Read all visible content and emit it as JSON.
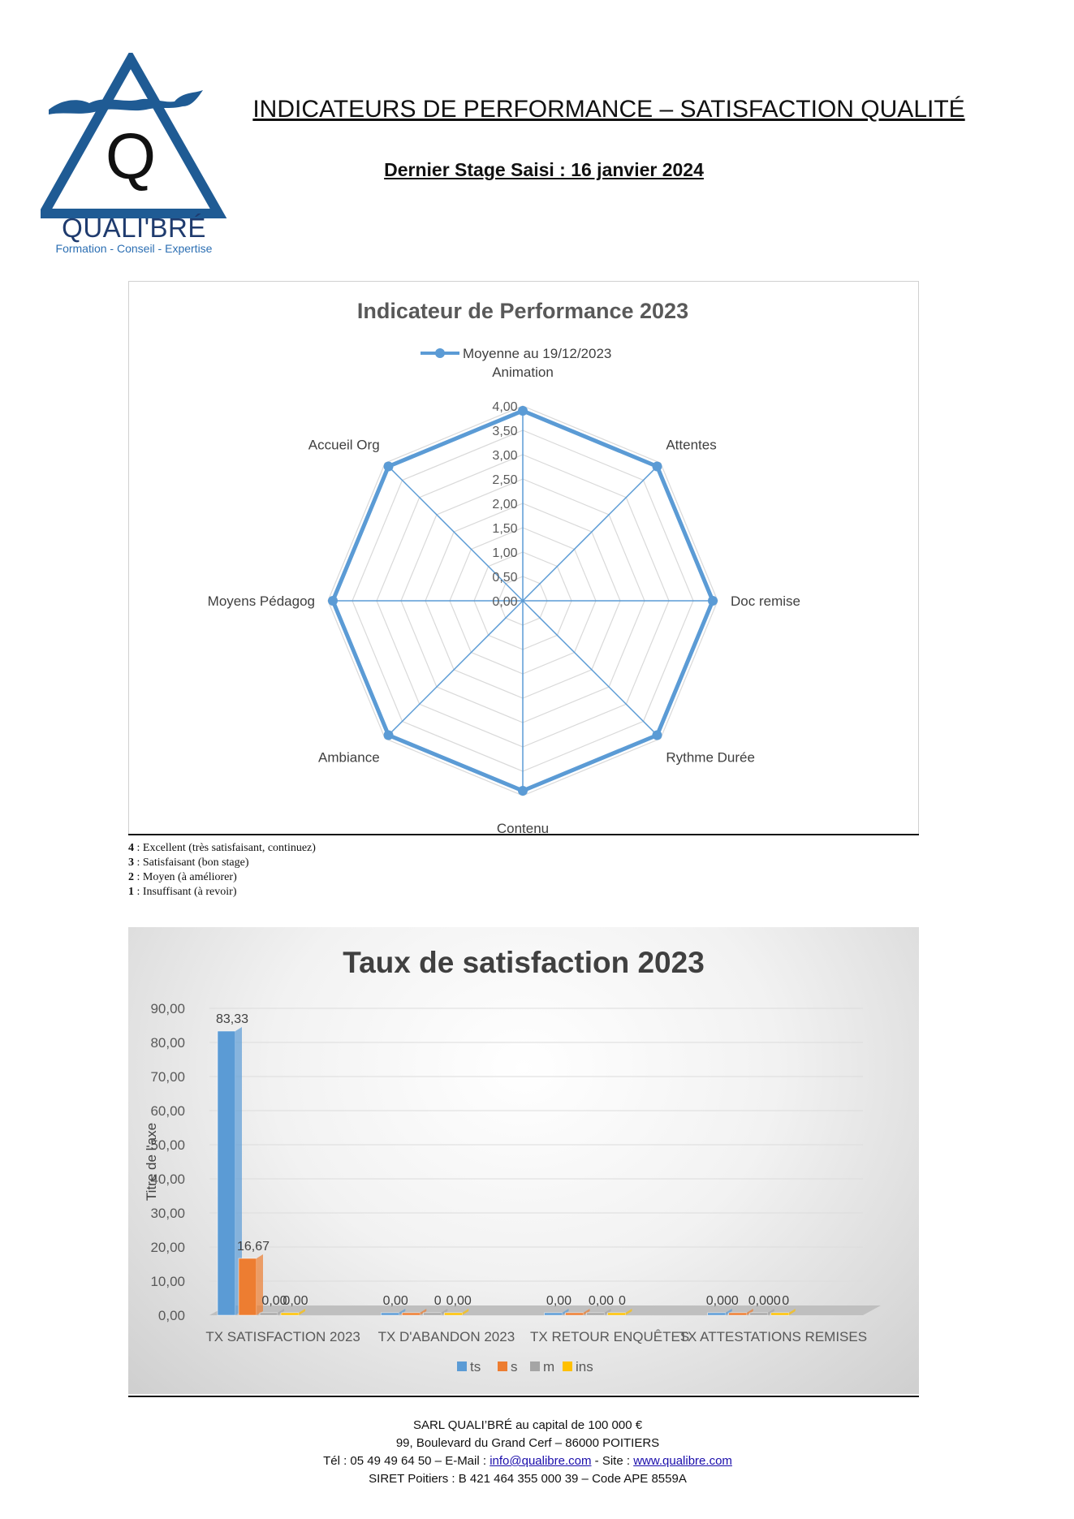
{
  "logo": {
    "letter": "Q",
    "name": "QUALI'BRÉ",
    "tagline": "Formation - Conseil - Expertise"
  },
  "header": {
    "title": "INDICATEURS DE PERFORMANCE – SATISFACTION QUALITÉ",
    "subtitle": "Dernier Stage Saisi : 16 janvier 2024"
  },
  "radar_legend_notes": [
    {
      "level": "4",
      "text": " : Excellent (très satisfaisant, continuez)"
    },
    {
      "level": "3",
      "text": " : Satisfaisant (bon stage)"
    },
    {
      "level": "2",
      "text": " : Moyen (à améliorer)"
    },
    {
      "level": "1",
      "text": " : Insuffisant (à revoir)"
    }
  ],
  "footer": {
    "line1": "SARL QUALI’BRÉ au capital de 100 000 €",
    "line2": "99, Boulevard du Grand Cerf – 86000 POITIERS",
    "line3_prefix": "Tél : 05 49 49 64 50 – E-Mail : ",
    "email": "info@qualibre.com",
    "line3_mid": " - Site : ",
    "site": "www.qualibre.com",
    "line4": "SIRET Poitiers : B 421 464 355 000 39 – Code APE 8559A"
  },
  "chart_data": [
    {
      "type": "radar",
      "title": "Indicateur de Performance 2023",
      "categories": [
        "Animation",
        "Attentes",
        "Doc remise",
        "Rythme Durée",
        "Contenu",
        "Ambiance",
        "Moyens Pédagog",
        "Accueil Org"
      ],
      "series": [
        {
          "name": "Moyenne au 19/12/2023",
          "values": [
            3.9,
            3.9,
            3.9,
            3.9,
            3.9,
            3.9,
            3.9,
            3.9
          ],
          "color": "#5b9bd5"
        }
      ],
      "rlim": [
        0,
        4
      ],
      "tick_labels": [
        "0,00",
        "0,50",
        "1,00",
        "1,50",
        "2,00",
        "2,50",
        "3,00",
        "3,50",
        "4,00"
      ],
      "legend": "top"
    },
    {
      "type": "bar",
      "title": "Taux de satisfaction 2023",
      "ylabel": "Titre de l'axe",
      "categories": [
        "TX SATISFACTION 2023",
        "TX D'ABANDON 2023",
        "TX RETOUR ENQUÊTES",
        "TX ATTESTATIONS REMISES"
      ],
      "series": [
        {
          "name": "ts",
          "color": "#5b9bd5",
          "values": [
            83.33,
            0,
            0,
            0
          ]
        },
        {
          "name": "s",
          "color": "#ed7d31",
          "values": [
            16.67,
            0,
            0,
            0
          ]
        },
        {
          "name": "m",
          "color": "#a5a5a5",
          "values": [
            0,
            0,
            0,
            0
          ]
        },
        {
          "name": "ins",
          "color": "#ffc000",
          "values": [
            0,
            0,
            0,
            0
          ]
        }
      ],
      "data_labels": [
        [
          "83,33",
          "16,67",
          "0,00",
          "0,00"
        ],
        [
          "0,00",
          "",
          "0",
          "0,00"
        ],
        [
          "0,00",
          "",
          "0,00",
          "0"
        ],
        [
          "0,000",
          "",
          "0,000",
          "0"
        ]
      ],
      "y_ticks": [
        "0,00",
        "10,00",
        "20,00",
        "30,00",
        "40,00",
        "50,00",
        "60,00",
        "70,00",
        "80,00",
        "90,00"
      ],
      "ylim": [
        0,
        90
      ],
      "legend": "bottom"
    }
  ]
}
